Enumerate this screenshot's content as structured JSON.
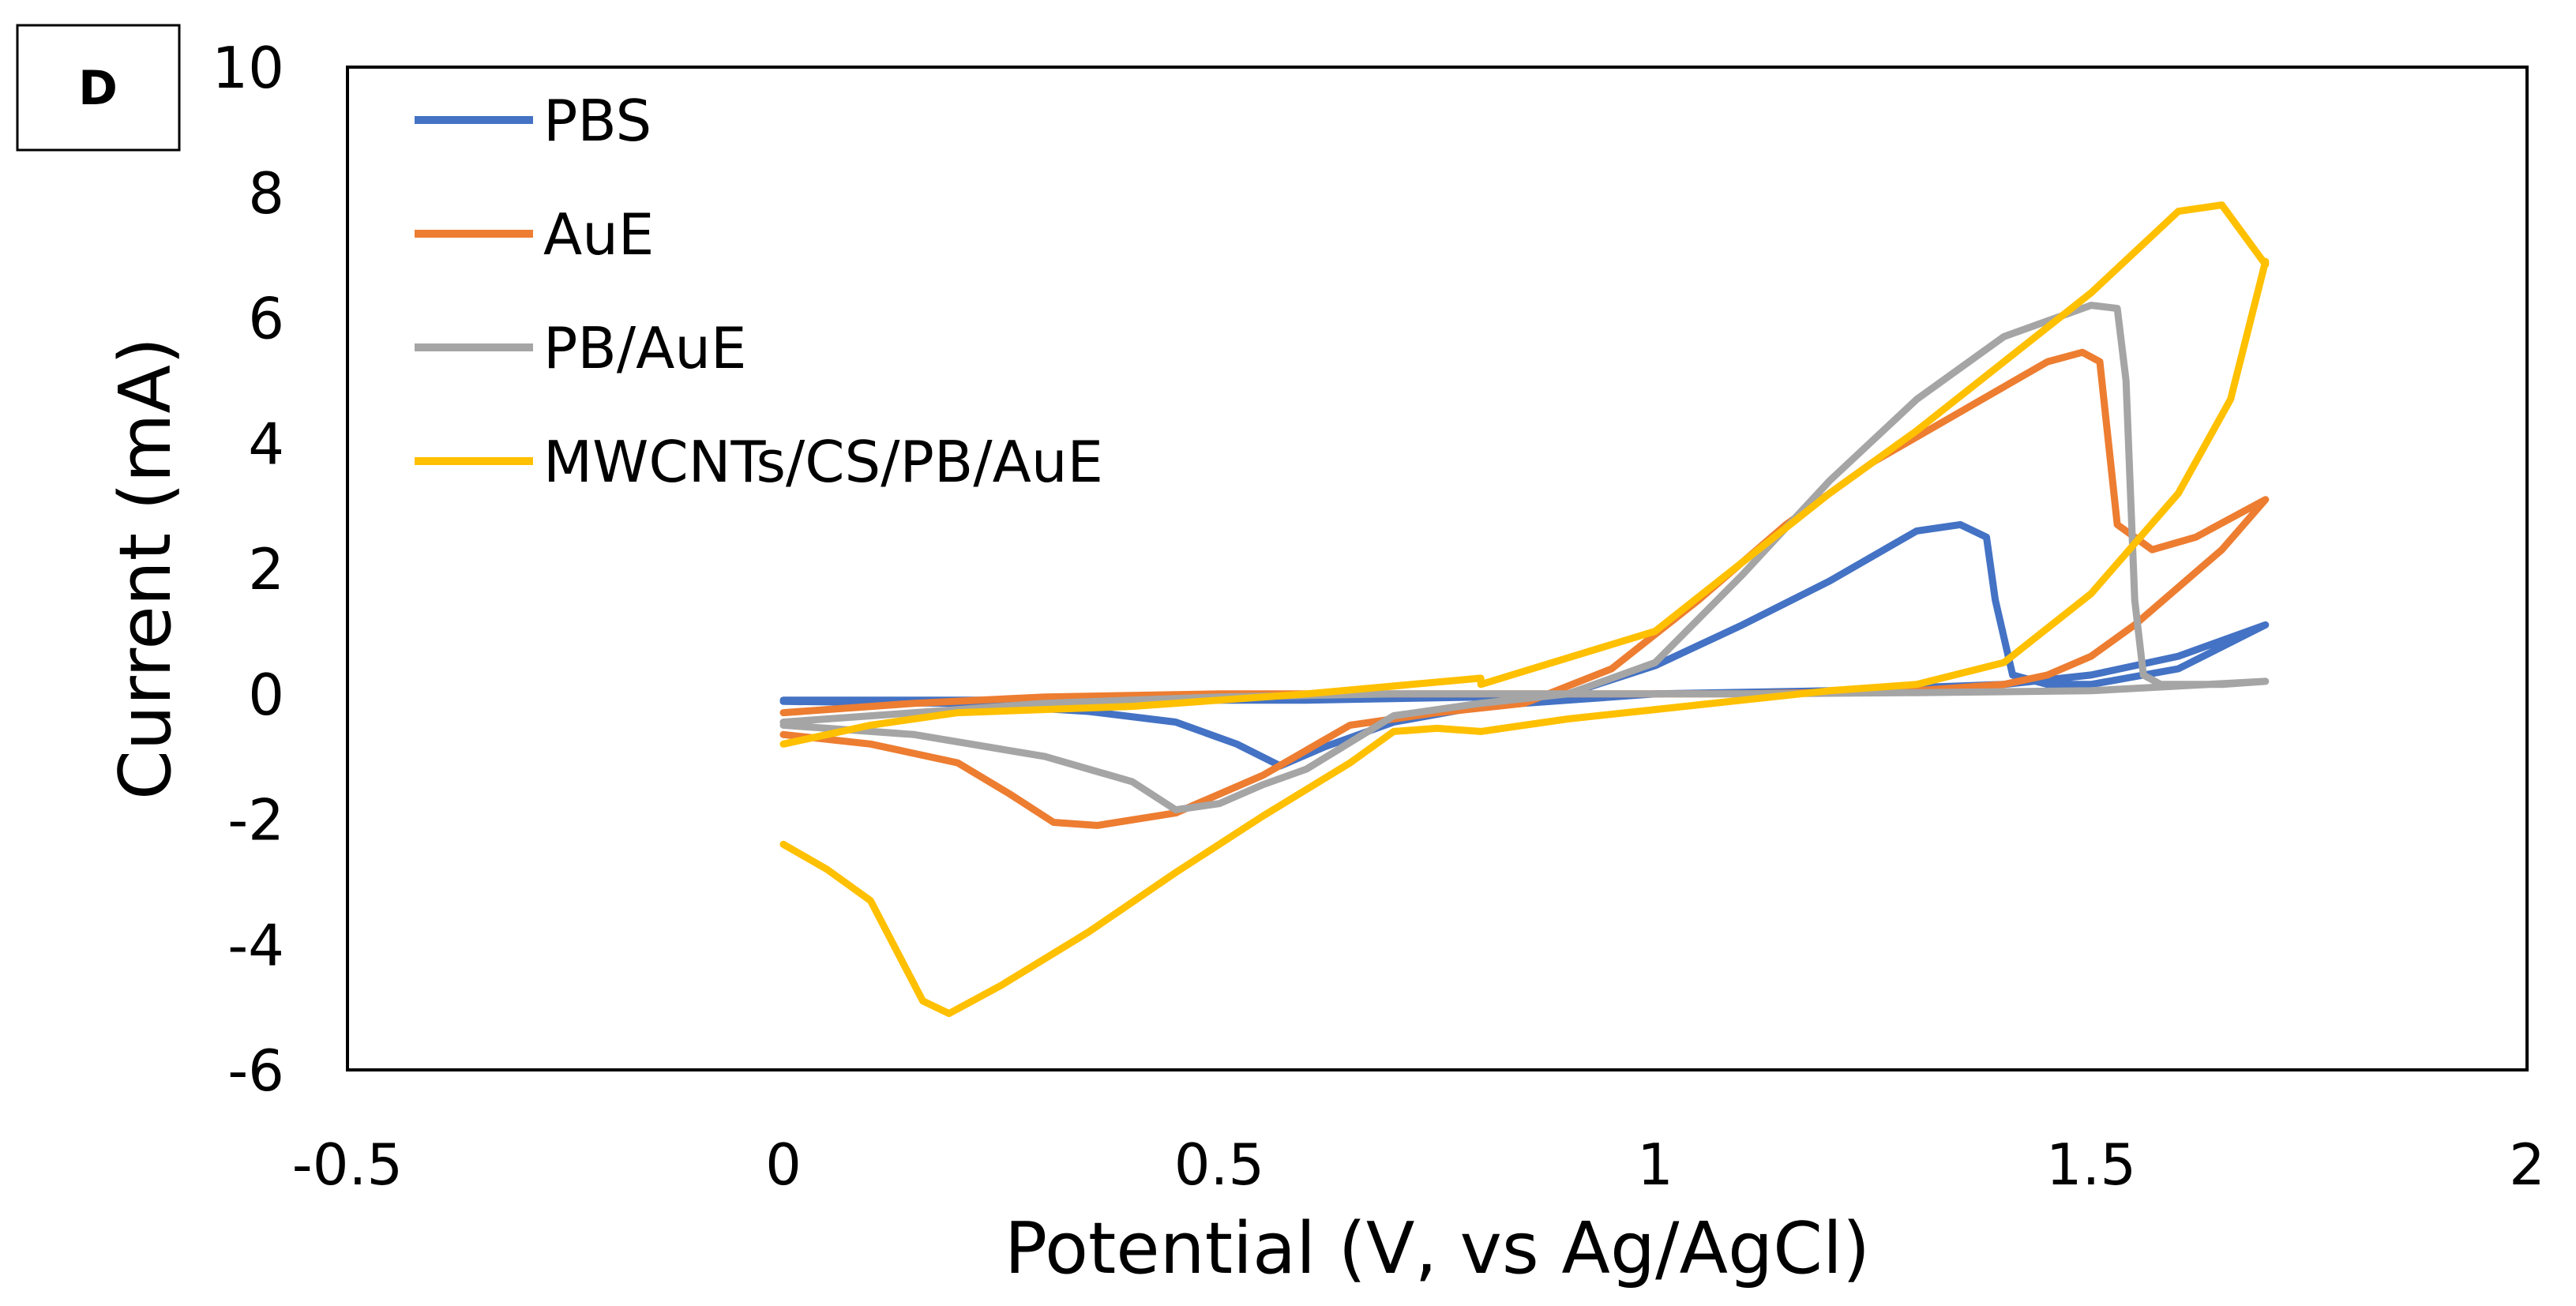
{
  "panel_label": "D",
  "chart_data": {
    "type": "line",
    "title": "",
    "xlabel": "Potential (V, vs Ag/AgCl)",
    "ylabel": "Current (mA)",
    "xlim": [
      -0.5,
      2
    ],
    "ylim": [
      -6,
      10
    ],
    "xticks": [
      -0.5,
      0,
      0.5,
      1,
      1.5,
      2
    ],
    "xtick_labels": [
      "-0.5",
      "0",
      "0.5",
      "1",
      "1.5",
      "2"
    ],
    "yticks": [
      -6,
      -4,
      -2,
      0,
      2,
      4,
      6,
      8,
      10
    ],
    "ytick_labels": [
      "-6",
      "-4",
      "-2",
      "0",
      "2",
      "4",
      "6",
      "8",
      "10"
    ],
    "grid": false,
    "legend_position": "top-left",
    "series": [
      {
        "name": "PBS",
        "color": "#4472C4",
        "x": [
          0,
          0.3,
          0.6,
          0.8,
          0.9,
          1.0,
          1.1,
          1.2,
          1.3,
          1.35,
          1.38,
          1.39,
          1.41,
          1.45,
          1.5,
          1.6,
          1.7,
          1.6,
          1.5,
          1.4,
          1.2,
          1.0,
          0.8,
          0.7,
          0.62,
          0.57,
          0.52,
          0.45,
          0.35,
          0.2,
          0.0
        ],
        "y": [
          -0.1,
          -0.1,
          -0.1,
          -0.05,
          0.0,
          0.45,
          1.1,
          1.8,
          2.6,
          2.7,
          2.5,
          1.5,
          0.3,
          0.15,
          0.15,
          0.4,
          1.1,
          0.6,
          0.3,
          0.15,
          0.05,
          0.0,
          -0.2,
          -0.45,
          -0.85,
          -1.15,
          -0.8,
          -0.45,
          -0.28,
          -0.15,
          -0.12
        ]
      },
      {
        "name": "AuE",
        "color": "#ED7D31",
        "x": [
          0,
          0.1,
          0.2,
          0.26,
          0.31,
          0.36,
          0.45,
          0.55,
          0.65,
          0.75,
          0.85,
          0.95,
          1.05,
          1.15,
          1.25,
          1.35,
          1.45,
          1.49,
          1.51,
          1.53,
          1.57,
          1.62,
          1.7,
          1.65,
          1.55,
          1.5,
          1.45,
          1.4,
          1.3,
          1.1,
          0.9,
          0.7,
          0.5,
          0.3,
          0.15,
          0.0
        ],
        "y": [
          -0.65,
          -0.8,
          -1.1,
          -1.6,
          -2.05,
          -2.1,
          -1.9,
          -1.3,
          -0.5,
          -0.3,
          -0.15,
          0.4,
          1.5,
          2.7,
          3.7,
          4.5,
          5.3,
          5.45,
          5.3,
          2.7,
          2.3,
          2.5,
          3.1,
          2.3,
          1.1,
          0.6,
          0.3,
          0.15,
          0.05,
          0.0,
          0.0,
          0.0,
          0.0,
          -0.05,
          -0.15,
          -0.3
        ]
      },
      {
        "name": "PB/AuE",
        "color": "#A5A5A5",
        "x": [
          0,
          0.15,
          0.3,
          0.4,
          0.45,
          0.5,
          0.55,
          0.6,
          0.7,
          0.8,
          0.9,
          1.0,
          1.1,
          1.2,
          1.3,
          1.4,
          1.5,
          1.53,
          1.54,
          1.55,
          1.56,
          1.58,
          1.65,
          1.7,
          1.5,
          1.3,
          1.1,
          0.9,
          0.7,
          0.5,
          0.3,
          0.15,
          0.0
        ],
        "y": [
          -0.5,
          -0.65,
          -1.0,
          -1.4,
          -1.85,
          -1.75,
          -1.45,
          -1.2,
          -0.35,
          -0.15,
          0.0,
          0.5,
          1.9,
          3.4,
          4.7,
          5.7,
          6.2,
          6.15,
          5.0,
          1.5,
          0.3,
          0.15,
          0.15,
          0.2,
          0.05,
          0.02,
          0.0,
          0.0,
          0.0,
          -0.05,
          -0.15,
          -0.3,
          -0.45
        ]
      },
      {
        "name": "MWCNTs/CS/PB/AuE",
        "color": "#FFC000",
        "x": [
          0,
          0.05,
          0.1,
          0.13,
          0.16,
          0.19,
          0.25,
          0.35,
          0.45,
          0.55,
          0.65,
          0.7,
          0.75,
          0.8,
          0.9,
          1.0,
          1.1,
          1.2,
          1.3,
          1.4,
          1.5,
          1.6,
          1.66,
          1.68,
          1.7,
          1.7,
          1.65,
          1.6,
          1.5,
          1.4,
          1.3,
          1.2,
          1.0,
          0.8,
          0.8,
          0.6,
          0.4,
          0.2,
          0.1,
          0.0
        ],
        "y": [
          -2.4,
          -2.8,
          -3.3,
          -4.1,
          -4.9,
          -5.1,
          -4.65,
          -3.8,
          -2.85,
          -1.95,
          -1.1,
          -0.6,
          -0.55,
          -0.6,
          -0.4,
          -0.25,
          -0.1,
          0.05,
          0.15,
          0.5,
          1.6,
          3.2,
          4.7,
          5.8,
          6.9,
          6.85,
          7.8,
          7.7,
          6.4,
          5.3,
          4.2,
          3.2,
          1.0,
          0.15,
          0.25,
          0.0,
          -0.2,
          -0.3,
          -0.5,
          -0.8
        ]
      }
    ]
  }
}
